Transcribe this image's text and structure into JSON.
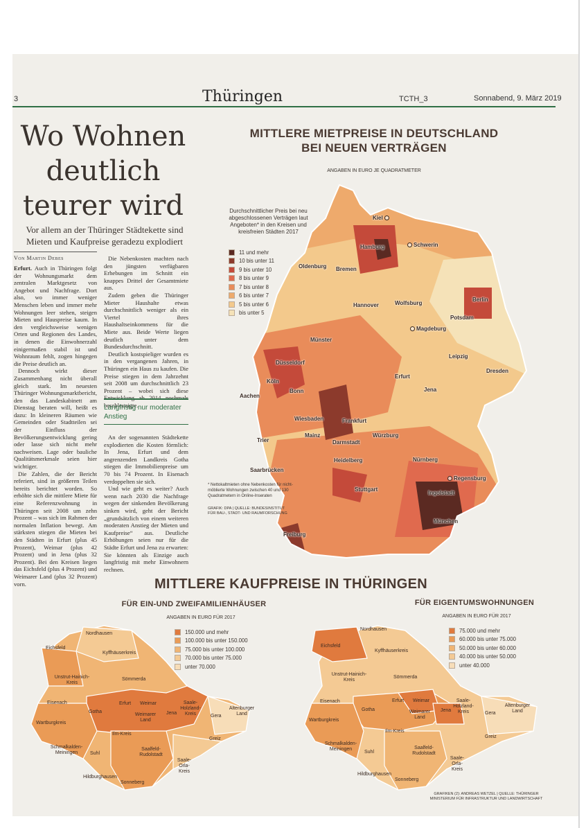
{
  "header": {
    "page_number": "3",
    "section": "Thüringen",
    "code": "TCTH_3",
    "date": "Sonnabend, 9. März 2019"
  },
  "article": {
    "headline_lines": [
      "Wo Wohnen",
      "deutlich",
      "teurer wird"
    ],
    "subheadline": "Vor allem an der Thüringer Städtekette sind Mieten und Kaufpreise geradezu explodiert",
    "byline": "Von Martin Debes",
    "col1_lead": "Erfurt.",
    "col1_p1": "Auch in Thüringen folgt der Wohnungsmarkt dem zentralen Marktgesetz von Angebot und Nachfrage. Dort also, wo immer weniger Menschen leben und immer mehr Wohnungen leer stehen, steigen Mieten und Hauspreise kaum. In den vergleichsweise wenigen Orten und Regionen des Landes, in denen die Einwohnerzahl einigermaßen stabil ist und Wohnraum fehlt, zogen hingegen die Preise deutlich an.",
    "col1_p2": "Dennoch wirkt dieser Zusammenhang nicht überall gleich stark. Im neuesten Thüringer Wohnungsmarktbericht, den das Landeskabinett am Dienstag beraten will, heißt es dazu: In kleineren Räumen wie Gemeinden oder Stadtteilen sei der Einfluss der Bevölkerungsentwicklung gering oder lasse sich nicht mehr nachweisen. Lage oder bauliche Qualitätsmerkmale seien hier wichtiger.",
    "col1_p3": "Die Zahlen, die der Bericht referiert, sind in größeren Teilen bereits berichtet worden. So erhöhte sich die mittlere Miete für eine Referenzwohnung in Thüringen seit 2008 um zehn Prozent – was sich im Rahmen der normalen Inflation bewegt. Am stärksten stiegen die Mieten bei den Städten in Erfurt (plus 45 Prozent), Weimar (plus 42 Prozent) und in Jena (plus 32 Prozent). Bei den Kreisen liegen das Eichsfeld (plus 4 Prozent) und Weimarer Land (plus 32 Prozent) vorn.",
    "col2_p1": "Die Nebenkosten machten nach den jüngsten verfügbaren Erhebungen im Schnitt ein knappes Drittel der Gesamtmiete aus.",
    "col2_p2": "Zudem geben die Thüringer Mieter Haushalte etwas durchschnittlich weniger als ein Viertel ihres Haushaltseinkommens für die Miete aus. Beide Werte liegen deutlich unter dem Bundesdurchschnitt.",
    "col2_p3": "Deutlich kostspieliger wurden es in den vergangenen Jahren, in Thüringen ein Haus zu kaufen. Die Preise stiegen in dem Jahrzehnt seit 2008 um durchschnittlich 23 Prozent – wobei sich diese Entwicklung ab 2014 nochmals beschleunigte.",
    "subhead": "Langfristig nur moderater Anstieg",
    "col2_p4": "An der sogenannten Städtekette explodierten die Kosten förmlich: In Jena, Erfurt und dem angrenzenden Landkreis Gotha stiegen die Immobilienpreise um 70 bis 74 Prozent. In Eisenach verdoppelten sie sich.",
    "col2_p5": "Und wie geht es weiter? Auch wenn nach 2030 die Nachfrage wegen der sinkenden Bevölkerung sinken wird, geht der Bericht „grundsätzlich von einem weiteren moderaten Anstieg der Mieten und Kaufpreise“ aus. Deutliche Erhöhungen seien nur für die Städte Erfurt und Jena zu erwarten: Sie könnten als Einzige auch langfristig mit mehr Einwohnern rechnen."
  },
  "germany_map": {
    "title_line1": "MITTLERE MIETPREISE IN DEUTSCHLAND",
    "title_line2": "BEI NEUEN VERTRÄGEN",
    "subtitle": "ANGABEN IN EURO JE QUADRATMETER",
    "legend_title": "Durchschnittlicher Preis bei neu abgeschlossenen Verträgen laut Angeboten* in den Kreisen und kreisfreien Städten 2017",
    "legend": [
      {
        "label": "11 und mehr",
        "color": "#5b2a22"
      },
      {
        "label": "10 bis unter 11",
        "color": "#8c3a2c"
      },
      {
        "label": "9 bis unter 10",
        "color": "#c44a3a"
      },
      {
        "label": "8 bis unter 9",
        "color": "#e06a4e"
      },
      {
        "label": "7 bis unter 8",
        "color": "#e98c5a"
      },
      {
        "label": "6 bis unter 7",
        "color": "#eeaa6c"
      },
      {
        "label": "5 bis unter 6",
        "color": "#f3c98c"
      },
      {
        "label": "bis unter 5",
        "color": "#f5e2b8"
      }
    ],
    "footnote": "* Nettokaltmieten ohne Nebenkosten für nicht-möblierte Wohnungen zwischen 40 und 130 Quadratmetern in Online-Inseraten",
    "source": "GRAFIK: DPA | QUELLE: BUNDESINSTITUT FÜR BAU-, STADT- UND RAUMFORSCHUNG",
    "cities": [
      "Kiel",
      "Hamburg",
      "Schwerin",
      "Oldenburg",
      "Bremen",
      "Berlin",
      "Hannover",
      "Wolfsburg",
      "Potsdam",
      "Magdeburg",
      "Münster",
      "Leipzig",
      "Düsseldorf",
      "Dresden",
      "Köln",
      "Erfurt",
      "Bonn",
      "Jena",
      "Aachen",
      "Wiesbaden",
      "Frankfurt",
      "Würzburg",
      "Mainz",
      "Darmstadt",
      "Trier",
      "Heidelberg",
      "Nürnberg",
      "Saarbrücken",
      "Regensburg",
      "Stuttgart",
      "Ingolstadt",
      "München",
      "Freiburg"
    ]
  },
  "th_map": {
    "title": "MITTLERE KAUFPREISE IN THÜRINGEN",
    "houses": {
      "title": "FÜR EIN-UND ZWEIFAMILIENHÄUSER",
      "subtitle": "ANGABEN IN EURO FÜR 2017",
      "legend": [
        {
          "label": "150.000 und mehr",
          "color": "#e07a3e"
        },
        {
          "label": "100.000 bis unter 150.000",
          "color": "#ea9b56"
        },
        {
          "label": "75.000 bis unter 100.000",
          "color": "#f0b574"
        },
        {
          "label": "70.000 bis unter 75.000",
          "color": "#f4ca94"
        },
        {
          "label": "unter 70.000",
          "color": "#f7ddb8"
        }
      ]
    },
    "flats": {
      "title": "FÜR EIGENTUMSWOHNUNGEN",
      "subtitle": "ANGABEN IN EURO FÜR 2017",
      "legend": [
        {
          "label": "75.000 und mehr",
          "color": "#e07a3e"
        },
        {
          "label": "60.000 bis unter 75.000",
          "color": "#ea9b56"
        },
        {
          "label": "50.000 bis unter 60.000",
          "color": "#f0b574"
        },
        {
          "label": "40.000 bis unter 50.000",
          "color": "#f4ca94"
        },
        {
          "label": "unter 40.000",
          "color": "#f7ddb8"
        }
      ]
    },
    "regions": {
      "nordhausen": "Nordhausen",
      "eichsfeld": "Eichsfeld",
      "kyffhaeuser": "Kyffhäuserkreis",
      "unstrut": "Unstrut-Hainich-Kreis",
      "soemmerda": "Sömmerda",
      "eisenach": "Eisenach",
      "gotha": "Gotha",
      "erfurt": "Erfurt",
      "weimar": "Weimar",
      "saale_holzland": "Saale-Holzland-Kreis",
      "jena": "Jena",
      "gera": "Gera",
      "altenburger": "Altenburger Land",
      "weimarer_land": "Weimarer Land",
      "wartburg": "Wartburgkreis",
      "ilm": "Ilm-Kreis",
      "greiz": "Greiz",
      "schmalkalden": "Schmalkalden-Meiningen",
      "suhl": "Suhl",
      "saalfeld": "Saalfeld-Rudolstadt",
      "saale_orla": "Saale-Orla-Kreis",
      "hildburghausen": "Hildburghausen",
      "sonneberg": "Sonneberg"
    },
    "credit": "GRAFIKEN (2): ANDREAS WETZEL | QUELLE: THÜRINGER MINISTERIUM FÜR INFRASTRUKTUR UND LANDWIRTSCHAFT"
  }
}
